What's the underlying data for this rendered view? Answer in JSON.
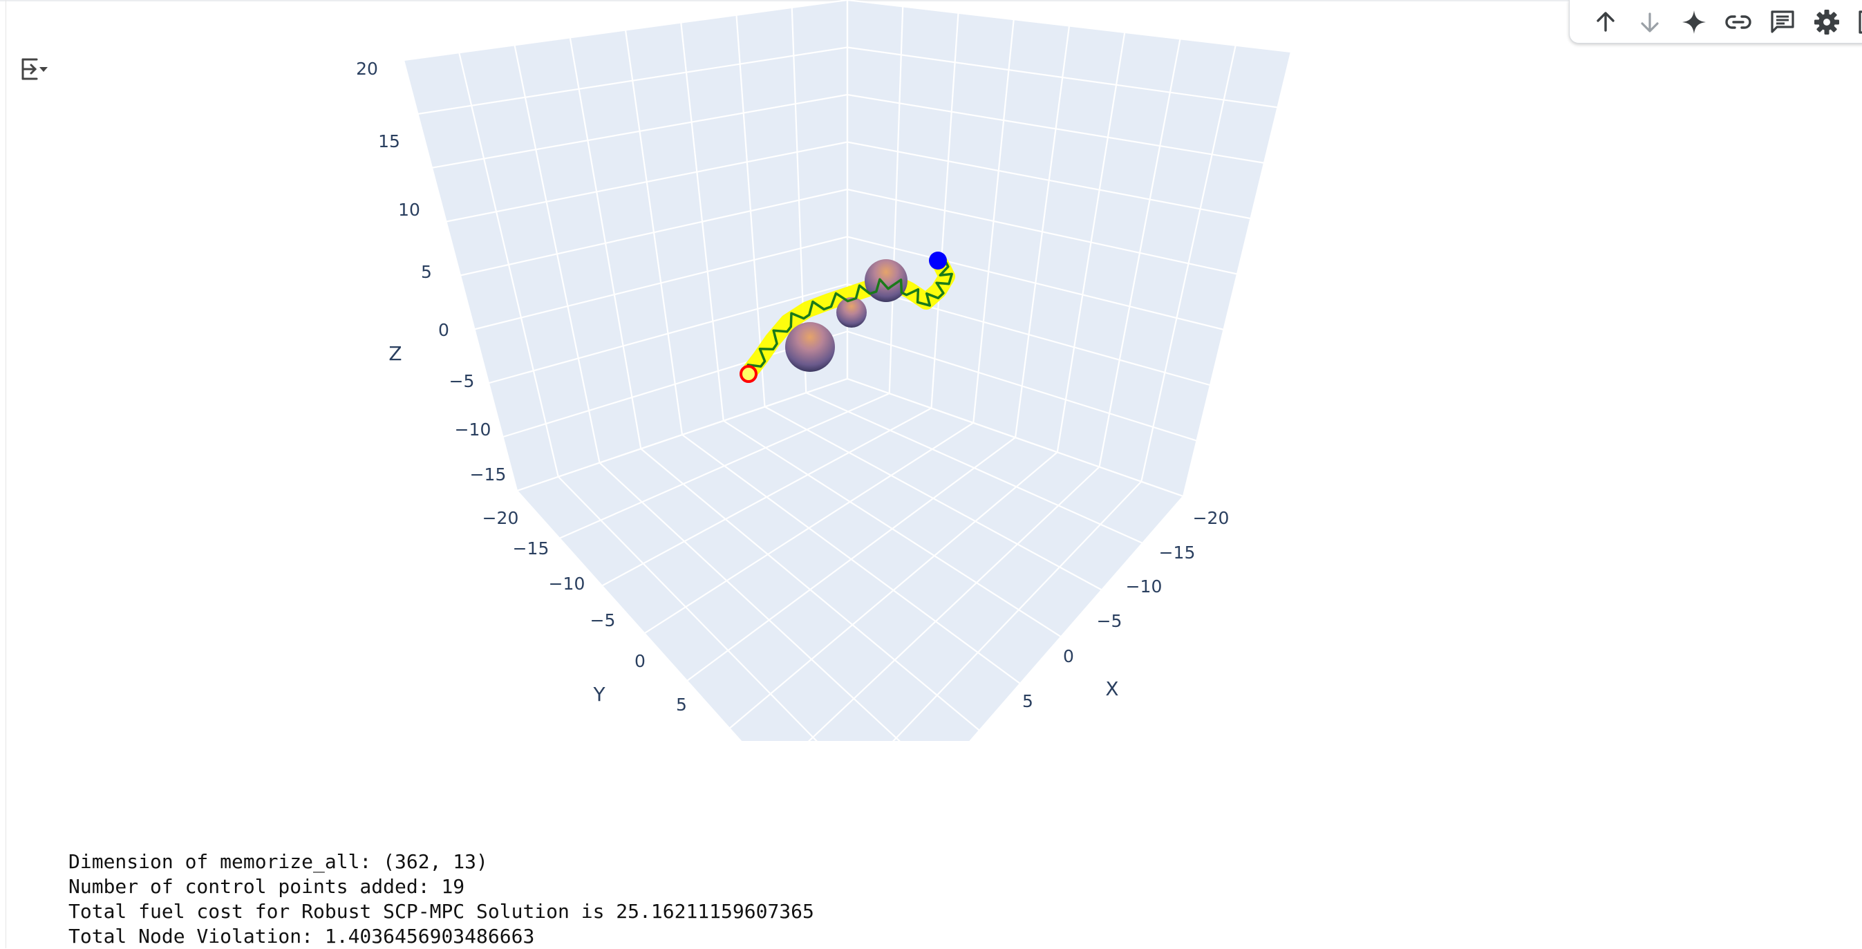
{
  "toolbar": {
    "buttons": [
      {
        "icon": "arrow-up-icon",
        "label": "Move cell up"
      },
      {
        "icon": "arrow-down-icon",
        "label": "Move cell down"
      },
      {
        "icon": "sparkle-icon",
        "label": "Generate"
      },
      {
        "icon": "link-icon",
        "label": "Link to cell"
      },
      {
        "icon": "comment-icon",
        "label": "Add comment"
      },
      {
        "icon": "gear-icon",
        "label": "Settings"
      },
      {
        "icon": "image-icon",
        "label": "Mirror in tab"
      }
    ]
  },
  "chart_data": {
    "type": "scatter3d",
    "title": "",
    "axes": {
      "x": {
        "title": "X",
        "range": [
          -20,
          20
        ],
        "ticks": [
          "−20",
          "−15",
          "−10",
          "−5",
          "0",
          "5"
        ]
      },
      "y": {
        "title": "Y",
        "range": [
          -20,
          20
        ],
        "ticks": [
          "−15",
          "−10",
          "−5",
          "0",
          "5"
        ]
      },
      "z": {
        "title": "Z",
        "range": [
          -20,
          20
        ],
        "ticks": [
          "20",
          "15",
          "10",
          "5",
          "0",
          "−5",
          "−10",
          "−15",
          "−20"
        ]
      }
    },
    "background_color": "#e5ecf6",
    "grid_color": "#ffffff",
    "series": [
      {
        "role": "start marker",
        "color": "#ff0000",
        "style": "hollow circle"
      },
      {
        "role": "goal marker",
        "color": "#0000ff",
        "style": "filled circle"
      },
      {
        "role": "trajectory corridor",
        "color": "#ffff00"
      },
      {
        "role": "trajectory",
        "color": "#1a7a1a"
      },
      {
        "role": "spherical obstacles",
        "count": 3,
        "color": "#8a7399"
      }
    ]
  },
  "output_lines": [
    "Dimension of memorize_all: (362, 13)",
    "Number of control points added: 19",
    "Total fuel cost for Robust SCP-MPC Solution is 25.16211159607365",
    "Total Node Violation: 1.4036456903486663"
  ]
}
